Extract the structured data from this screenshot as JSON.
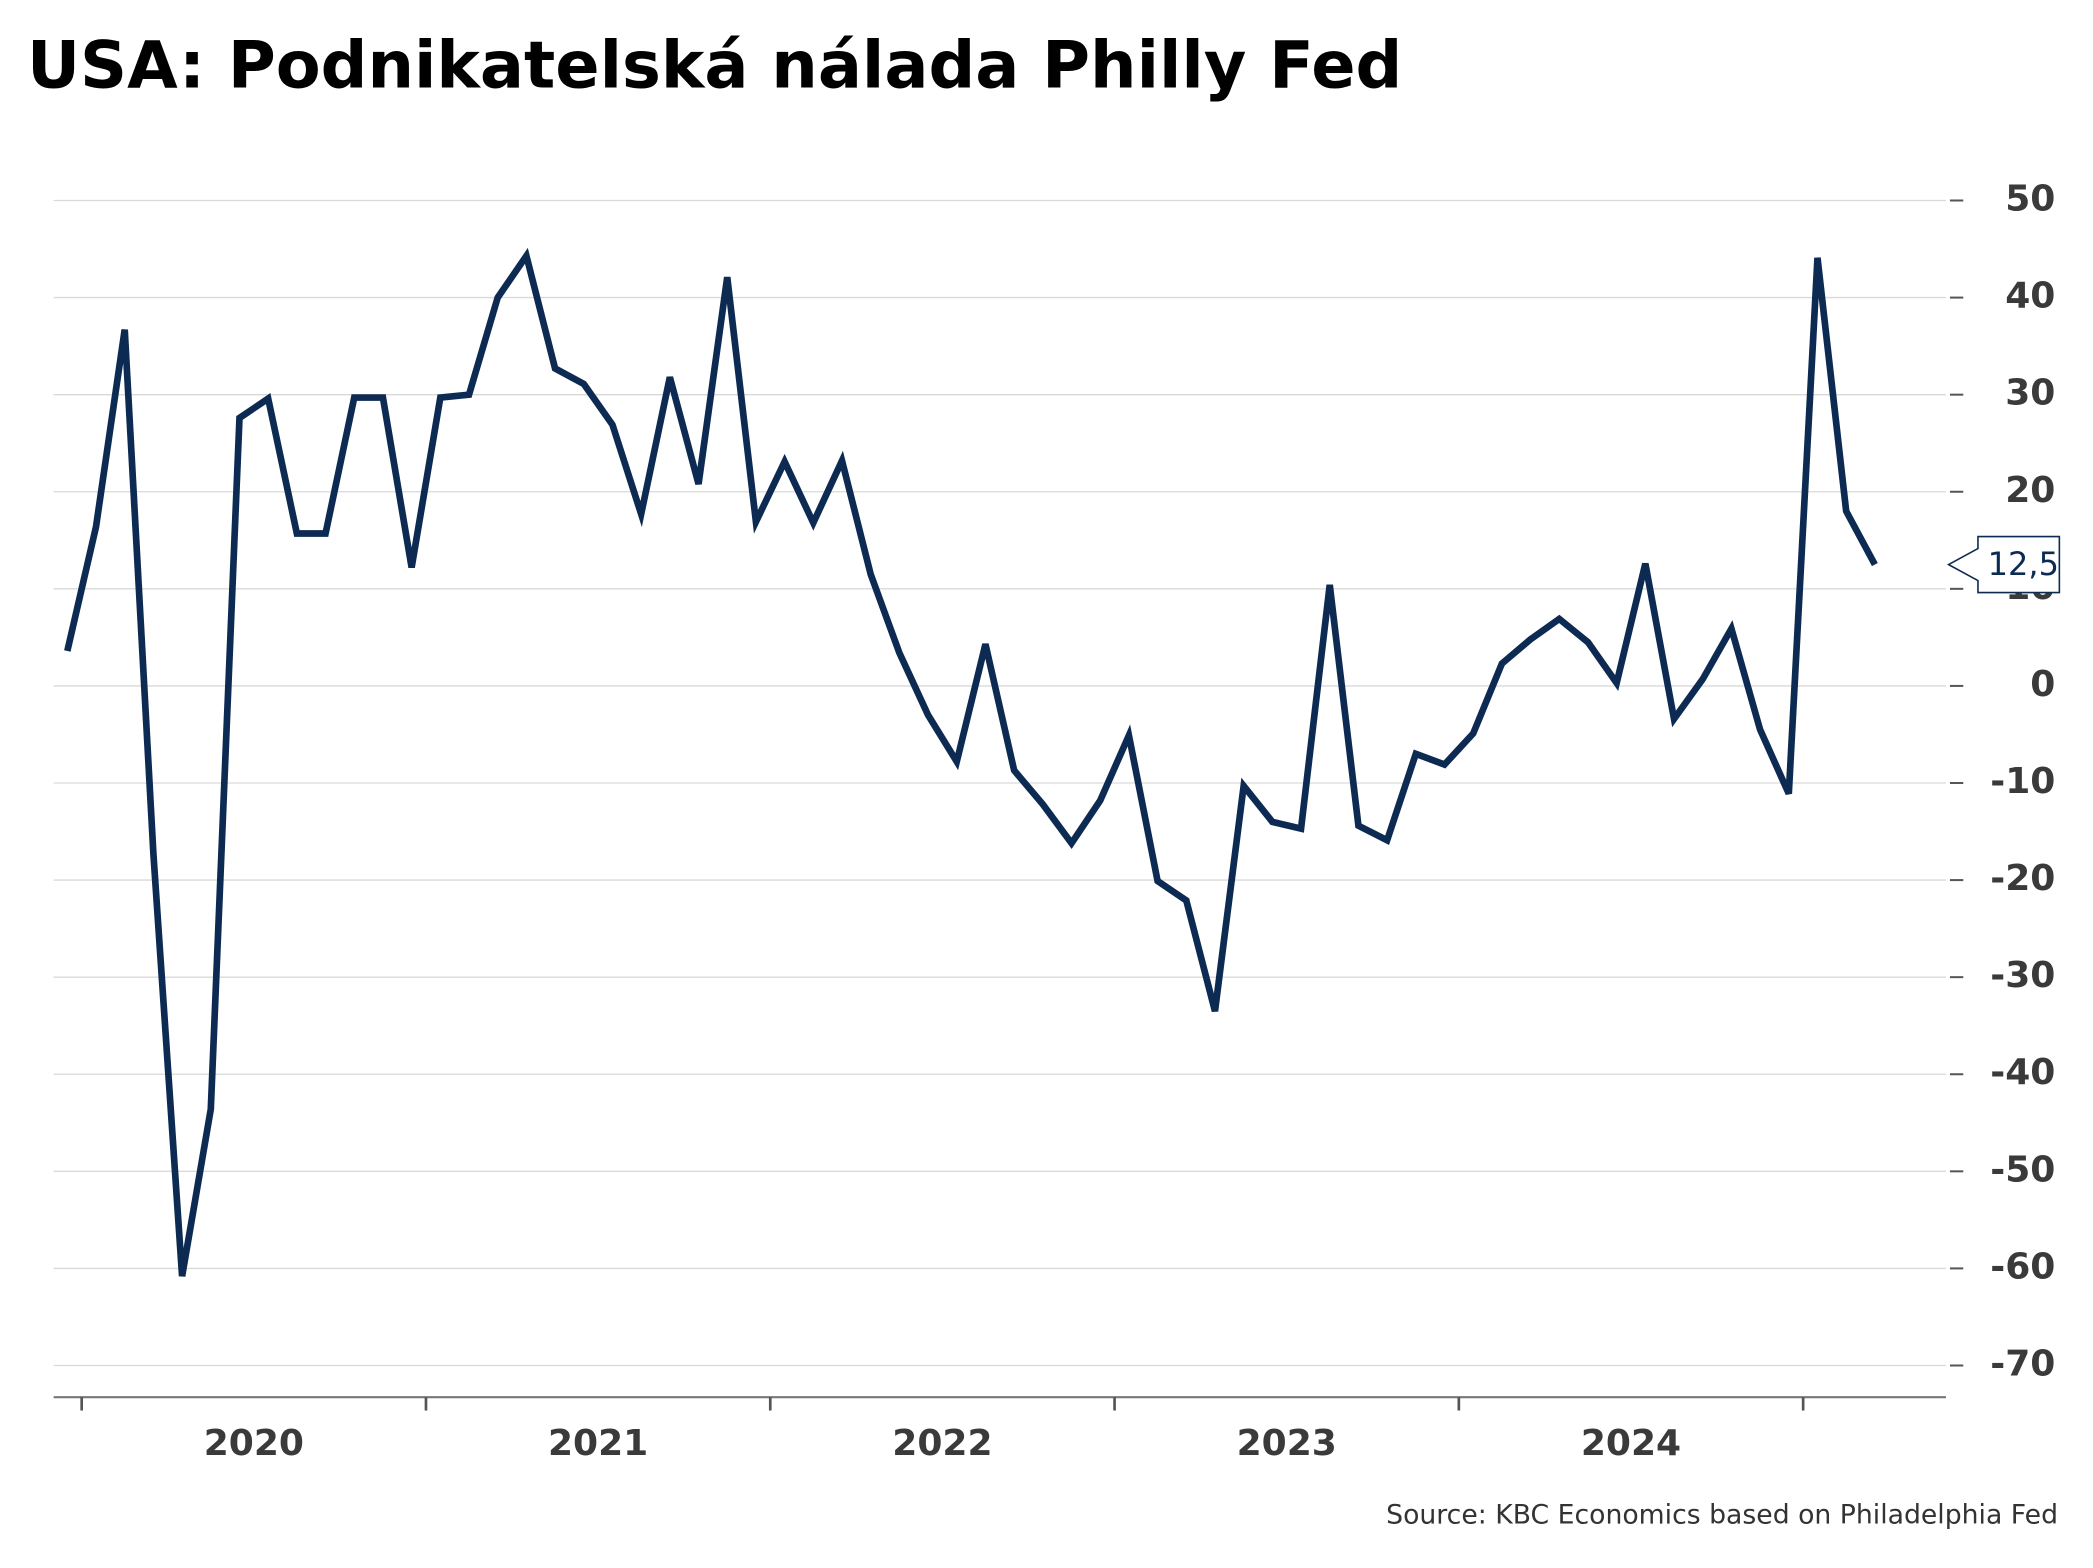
{
  "chart_data": {
    "type": "line",
    "title": "USA: Podnikatelská nálada Philly Fed",
    "source": "Source: KBC Economics based on Philadelphia Fed",
    "x_year_labels": [
      "2020",
      "2021",
      "2022",
      "2023",
      "2024"
    ],
    "series": [
      {
        "name": "Philly Fed",
        "color": "#0d2b52",
        "values": [
          3.6,
          16.4,
          36.7,
          -17.3,
          -60.8,
          -43.6,
          27.6,
          29.6,
          15.7,
          15.7,
          29.7,
          29.7,
          12.2,
          29.7,
          30.0,
          40.0,
          44.3,
          32.7,
          31.1,
          26.9,
          17.7,
          31.8,
          20.8,
          42.1,
          16.9,
          23.1,
          16.8,
          23.2,
          11.5,
          3.4,
          -3.0,
          -7.8,
          4.3,
          -8.7,
          -12.2,
          -16.2,
          -11.8,
          -5.1,
          -20.1,
          -22.1,
          -33.5,
          -10.3,
          -14.0,
          -14.7,
          10.4,
          -14.4,
          -15.9,
          -7.0,
          -8.1,
          -4.9,
          2.3,
          4.8,
          6.9,
          4.5,
          0.3,
          12.6,
          -3.4,
          0.7,
          5.9,
          -4.5,
          -11.1,
          44.1,
          18.0,
          12.5
        ],
        "value_labels": [
          null,
          null,
          null,
          null,
          null,
          null,
          null,
          null,
          null,
          null,
          null,
          null,
          null,
          null,
          null,
          null,
          null,
          null,
          null,
          null,
          null,
          null,
          null,
          null,
          null,
          null,
          null,
          null,
          null,
          null,
          null,
          null,
          null,
          null,
          null,
          null,
          null,
          null,
          null,
          null,
          null,
          null,
          null,
          null,
          null,
          null,
          null,
          null,
          null,
          null,
          null,
          null,
          null,
          null,
          null,
          null,
          null,
          null,
          null,
          null,
          null,
          null,
          null,
          "12,5"
        ]
      }
    ],
    "ylim": [
      -73,
      52
    ],
    "yticks": [
      -70,
      -60,
      -50,
      -40,
      -30,
      -20,
      -10,
      0,
      10,
      20,
      30,
      40,
      50
    ],
    "grid": true
  }
}
